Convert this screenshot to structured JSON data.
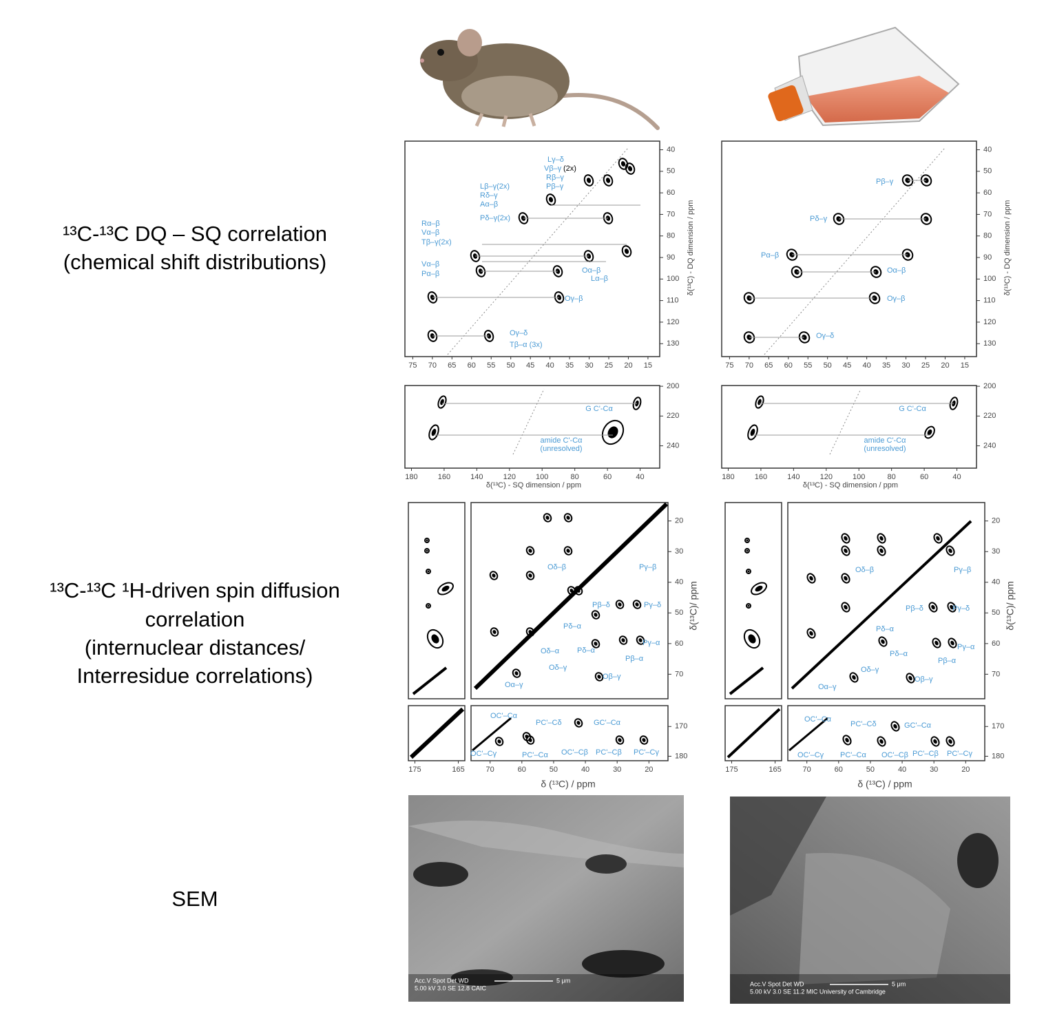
{
  "rows": {
    "dq_sq": {
      "label": [
        "¹³C-¹³C DQ – SQ correlation",
        "(chemical shift distributions)"
      ]
    },
    "spin_diffusion": {
      "label": [
        "¹³C-¹³C ¹H-driven spin diffusion",
        "correlation",
        "(internuclear distances/",
        "Interresidue correlations)"
      ]
    },
    "sem": {
      "label": [
        "SEM"
      ]
    }
  },
  "axes": {
    "dq_aliphatic": {
      "xlim": [
        77,
        12
      ],
      "xticks": [
        75,
        70,
        65,
        60,
        55,
        50,
        45,
        40,
        35,
        30,
        25,
        20,
        15
      ],
      "ylim": [
        36,
        136
      ],
      "yticks": [
        40,
        50,
        60,
        70,
        80,
        90,
        100,
        110,
        120,
        130
      ],
      "ylabel": "δ(¹³C) - DQ dimension / ppm"
    },
    "dq_carbonyl": {
      "xlim": [
        184,
        28
      ],
      "xticks": [
        180,
        160,
        140,
        120,
        100,
        80,
        60,
        40
      ],
      "ylim": [
        199.5,
        255
      ],
      "yticks": [
        200,
        220,
        240
      ],
      "xlabel": "δ(¹³C) - SQ dimension / ppm"
    },
    "sd_aliphatic": {
      "xlim": [
        76,
        14
      ],
      "xticks": [
        70,
        60,
        50,
        40,
        30,
        20
      ],
      "ylim": [
        14,
        78
      ],
      "yticks": [
        20,
        30,
        40,
        50,
        60,
        70
      ],
      "ylabel": "δ(¹³C)/ ppm"
    },
    "sd_carbonyl": {
      "ylim": [
        163,
        181.5
      ],
      "yticks": [
        170,
        180
      ],
      "xlabel": "δ (¹³C) / ppm"
    },
    "sd_strip": {
      "xlim": [
        176.5,
        163.5
      ],
      "xticks": [
        175,
        165
      ]
    }
  },
  "labels": {
    "dq_mouse": [
      "Lγ–δ",
      "Vβ–γ",
      "(2x)",
      "Rβ–γ",
      "Pβ–γ",
      "Lβ–γ(2x)",
      "Rδ–γ",
      "Aα–β",
      "Pδ–γ(2x)",
      "Rα–β",
      "Vα–β",
      "Tβ–γ(2x)",
      "Vα–β",
      "Pα–β",
      "Oα–β",
      "Lα–β",
      "Oγ–β",
      "Oγ–δ",
      "Tβ–α (3x)"
    ],
    "dq_culture": [
      "Pβ–γ",
      "Pδ–γ",
      "Pα–β",
      "Oα–β",
      "Oγ–β",
      "Oγ–δ"
    ],
    "dqc_mouse": [
      "G C'-Cα",
      "amide C'-Cα",
      "(unresolved)"
    ],
    "dqc_culture": [
      "G C'-Cα",
      "amide C'-Cα",
      "(unresolved)"
    ],
    "sd_mouse": [
      "Oδ–β",
      "Pγ–β",
      "Pβ–δ",
      "Pγ–δ",
      "Pδ–α",
      "Oδ–α",
      "Pδ–α",
      "Pγ–α",
      "Pβ–α",
      "Oδ–γ",
      "Oα–γ",
      "Oβ–γ"
    ],
    "sd_culture": [
      "Oδ–β",
      "Pγ–β",
      "Pβ–δ",
      "Pγ–δ",
      "Pδ–α",
      "Pδ–α",
      "Pγ–α",
      "Pβ–α",
      "Oδ–γ",
      "Oα–γ",
      "Oβ–γ"
    ],
    "sdc_mouse": [
      "OC'–Cα",
      "PC'–Cδ",
      "GC'–Cα",
      "OC'–Cγ",
      "PC'–Cα",
      "OC'–Cβ",
      "PC'–Cβ",
      "PC'–Cγ"
    ],
    "sdc_culture": [
      "OC'–Cα",
      "PC'–Cδ",
      "GC'–Cα",
      "OC'–Cγ",
      "PC'–Cα",
      "OC'–Cβ",
      "PC'–Cβ",
      "PC'–Cγ"
    ]
  },
  "sem": {
    "mouse": {
      "info": [
        "Acc.V   Spot Det   WD",
        "5.00 kV 3.0    SE    12.8   CAIC"
      ],
      "scale": "5 μm"
    },
    "culture": {
      "info": [
        "Acc.V   Spot Det   WD",
        "5.00 kV 3.0    SE    11.2   MIC University of Cambridge"
      ],
      "scale": "5 μm"
    }
  }
}
